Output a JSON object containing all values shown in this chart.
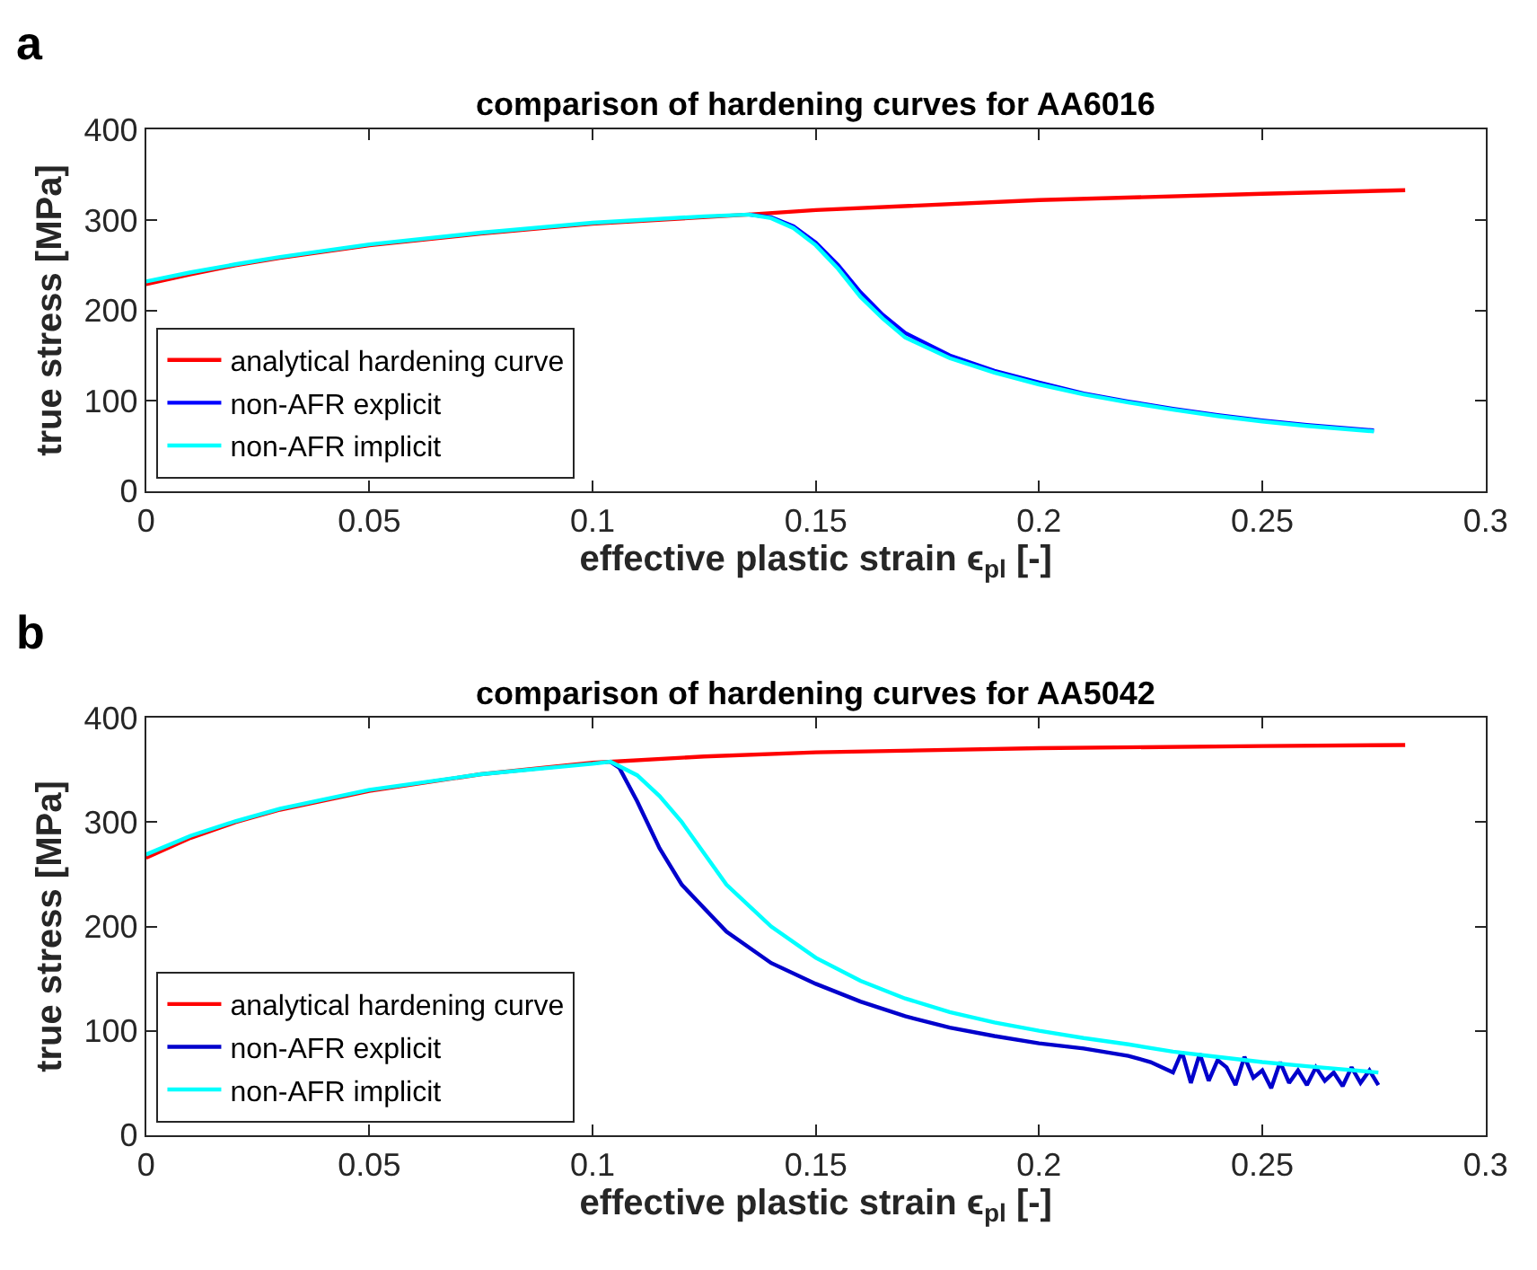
{
  "chart_data": [
    {
      "type": "line",
      "title": "comparison of hardening curves for AA6016",
      "xlabel": "effective plastic strain ϵ$_{pl}$ [-]",
      "ylabel": "true stress [MPa]",
      "annotations": [
        "a"
      ],
      "xlim": [
        0,
        0.3
      ],
      "xticks": [
        0,
        0.05,
        0.1,
        0.15,
        0.2,
        0.25,
        0.3
      ],
      "ylim": [
        0,
        400
      ],
      "yticks": [
        0,
        100,
        200,
        300,
        400
      ],
      "legend": "bottom left",
      "line_style": "solid",
      "marker": "none",
      "series": [
        {
          "name": "analytical hardening curve",
          "color": "#ff0000",
          "x": [
            0,
            0.01,
            0.02,
            0.03,
            0.05,
            0.075,
            0.1,
            0.135,
            0.15,
            0.2,
            0.25,
            0.282
          ],
          "values": [
            229,
            240,
            250,
            258,
            272,
            285,
            296,
            306,
            311,
            322,
            329,
            333
          ]
        },
        {
          "name": "non-AFR explicit",
          "color": "#0000ff",
          "x": [
            0.135,
            0.14,
            0.145,
            0.15,
            0.155,
            0.16,
            0.165,
            0.17,
            0.18,
            0.19,
            0.2,
            0.21,
            0.22,
            0.23,
            0.24,
            0.25,
            0.26,
            0.275
          ],
          "values": [
            306,
            303,
            293,
            275,
            250,
            220,
            195,
            175,
            150,
            133,
            120,
            108,
            99,
            91,
            84,
            78,
            73,
            67
          ]
        },
        {
          "name": "non-AFR implicit",
          "color": "#00ffff",
          "x": [
            0,
            0.01,
            0.02,
            0.03,
            0.05,
            0.075,
            0.1,
            0.125,
            0.135,
            0.14,
            0.145,
            0.15,
            0.155,
            0.16,
            0.165,
            0.17,
            0.18,
            0.19,
            0.2,
            0.21,
            0.22,
            0.23,
            0.24,
            0.25,
            0.26,
            0.275
          ],
          "values": [
            232,
            242,
            251,
            259,
            273,
            286,
            297,
            304,
            306,
            302,
            291,
            272,
            246,
            215,
            191,
            170,
            147,
            131,
            118,
            107,
            98,
            90,
            83,
            77,
            72,
            66
          ]
        }
      ]
    },
    {
      "type": "line",
      "title": "comparison of hardening curves for AA5042",
      "xlabel": "effective plastic strain ϵ$_{pl}$ [-]",
      "ylabel": "true stress [MPa]",
      "annotations": [
        "b"
      ],
      "xlim": [
        0,
        0.3
      ],
      "xticks": [
        0,
        0.05,
        0.1,
        0.15,
        0.2,
        0.25,
        0.3
      ],
      "ylim": [
        0,
        400
      ],
      "yticks": [
        0,
        100,
        200,
        300,
        400
      ],
      "legend": "bottom left",
      "line_style": "solid",
      "marker": "none",
      "series": [
        {
          "name": "analytical hardening curve",
          "color": "#ff0000",
          "x": [
            0,
            0.01,
            0.02,
            0.03,
            0.05,
            0.075,
            0.1,
            0.125,
            0.15,
            0.2,
            0.25,
            0.282
          ],
          "values": [
            266,
            285,
            300,
            312,
            330,
            346,
            357,
            363,
            367,
            371,
            373,
            374
          ]
        },
        {
          "name": "non-AFR explicit",
          "color": "#0000cc",
          "x": [
            0.104,
            0.106,
            0.11,
            0.115,
            0.12,
            0.13,
            0.14,
            0.15,
            0.16,
            0.17,
            0.18,
            0.19,
            0.2,
            0.21,
            0.22,
            0.225,
            0.23,
            0.232,
            0.234,
            0.236,
            0.238,
            0.24,
            0.242,
            0.244,
            0.246,
            0.248,
            0.25,
            0.252,
            0.254,
            0.256,
            0.258,
            0.26,
            0.262,
            0.264,
            0.266,
            0.268,
            0.27,
            0.272,
            0.274,
            0.276
          ],
          "values": [
            358,
            352,
            320,
            275,
            240,
            195,
            165,
            145,
            128,
            114,
            103,
            95,
            88,
            83,
            76,
            70,
            60,
            80,
            50,
            78,
            52,
            72,
            65,
            48,
            75,
            55,
            62,
            45,
            70,
            50,
            62,
            48,
            65,
            52,
            60,
            47,
            65,
            50,
            62,
            48
          ]
        },
        {
          "name": "non-AFR implicit",
          "color": "#00ffff",
          "x": [
            0,
            0.01,
            0.02,
            0.03,
            0.05,
            0.075,
            0.1,
            0.104,
            0.11,
            0.115,
            0.12,
            0.125,
            0.13,
            0.14,
            0.15,
            0.16,
            0.17,
            0.18,
            0.19,
            0.2,
            0.21,
            0.22,
            0.23,
            0.24,
            0.25,
            0.26,
            0.276
          ],
          "values": [
            269,
            287,
            301,
            313,
            331,
            346,
            356,
            358,
            345,
            325,
            300,
            270,
            240,
            200,
            170,
            148,
            131,
            118,
            108,
            100,
            93,
            87,
            80,
            75,
            70,
            66,
            60
          ]
        }
      ]
    }
  ]
}
